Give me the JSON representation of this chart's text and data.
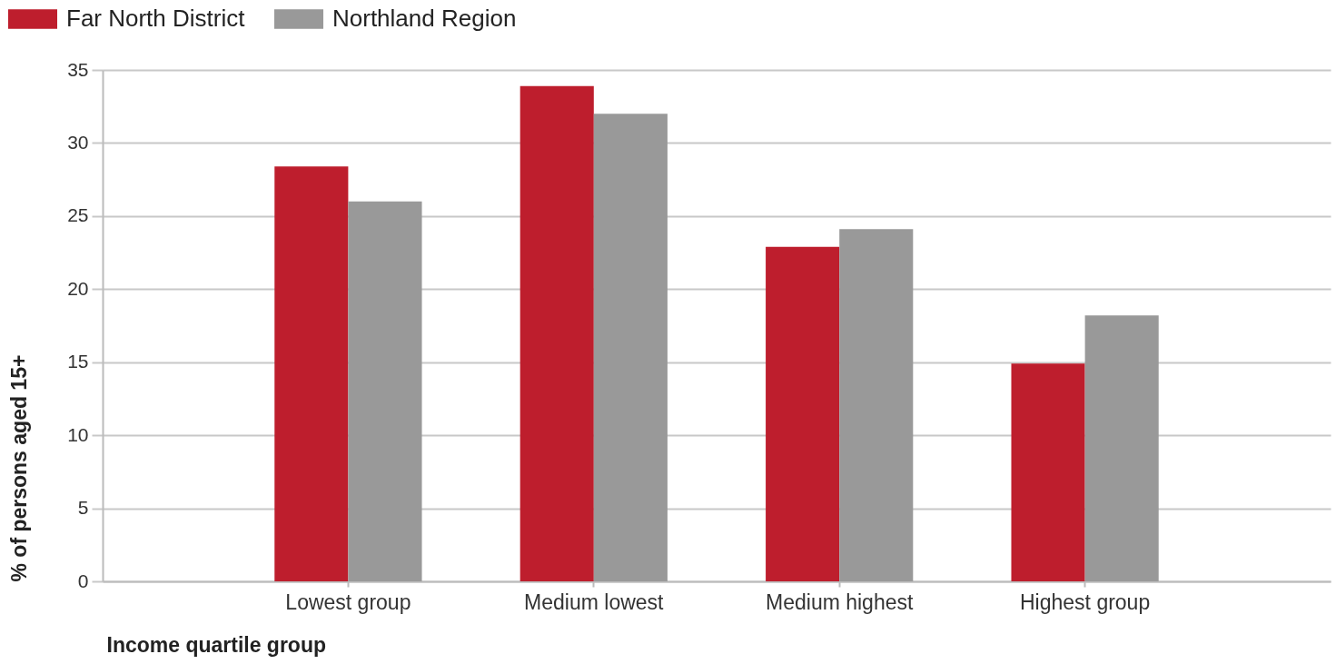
{
  "chart_data": {
    "type": "bar",
    "xlabel": "Income quartile group",
    "ylabel": "% of persons aged 15+",
    "categories": [
      "Lowest group",
      "Medium lowest",
      "Medium highest",
      "Highest group"
    ],
    "series": [
      {
        "name": "Far North District",
        "color": "#be1e2d",
        "values": [
          28.4,
          33.9,
          22.9,
          14.9
        ]
      },
      {
        "name": "Northland Region",
        "color": "#999999",
        "values": [
          26.0,
          32.0,
          24.1,
          18.2
        ]
      }
    ],
    "ylim": [
      0,
      35
    ],
    "yticks": [
      0,
      5,
      10,
      15,
      20,
      25,
      30,
      35
    ],
    "grid": "y",
    "legend": "top left"
  }
}
